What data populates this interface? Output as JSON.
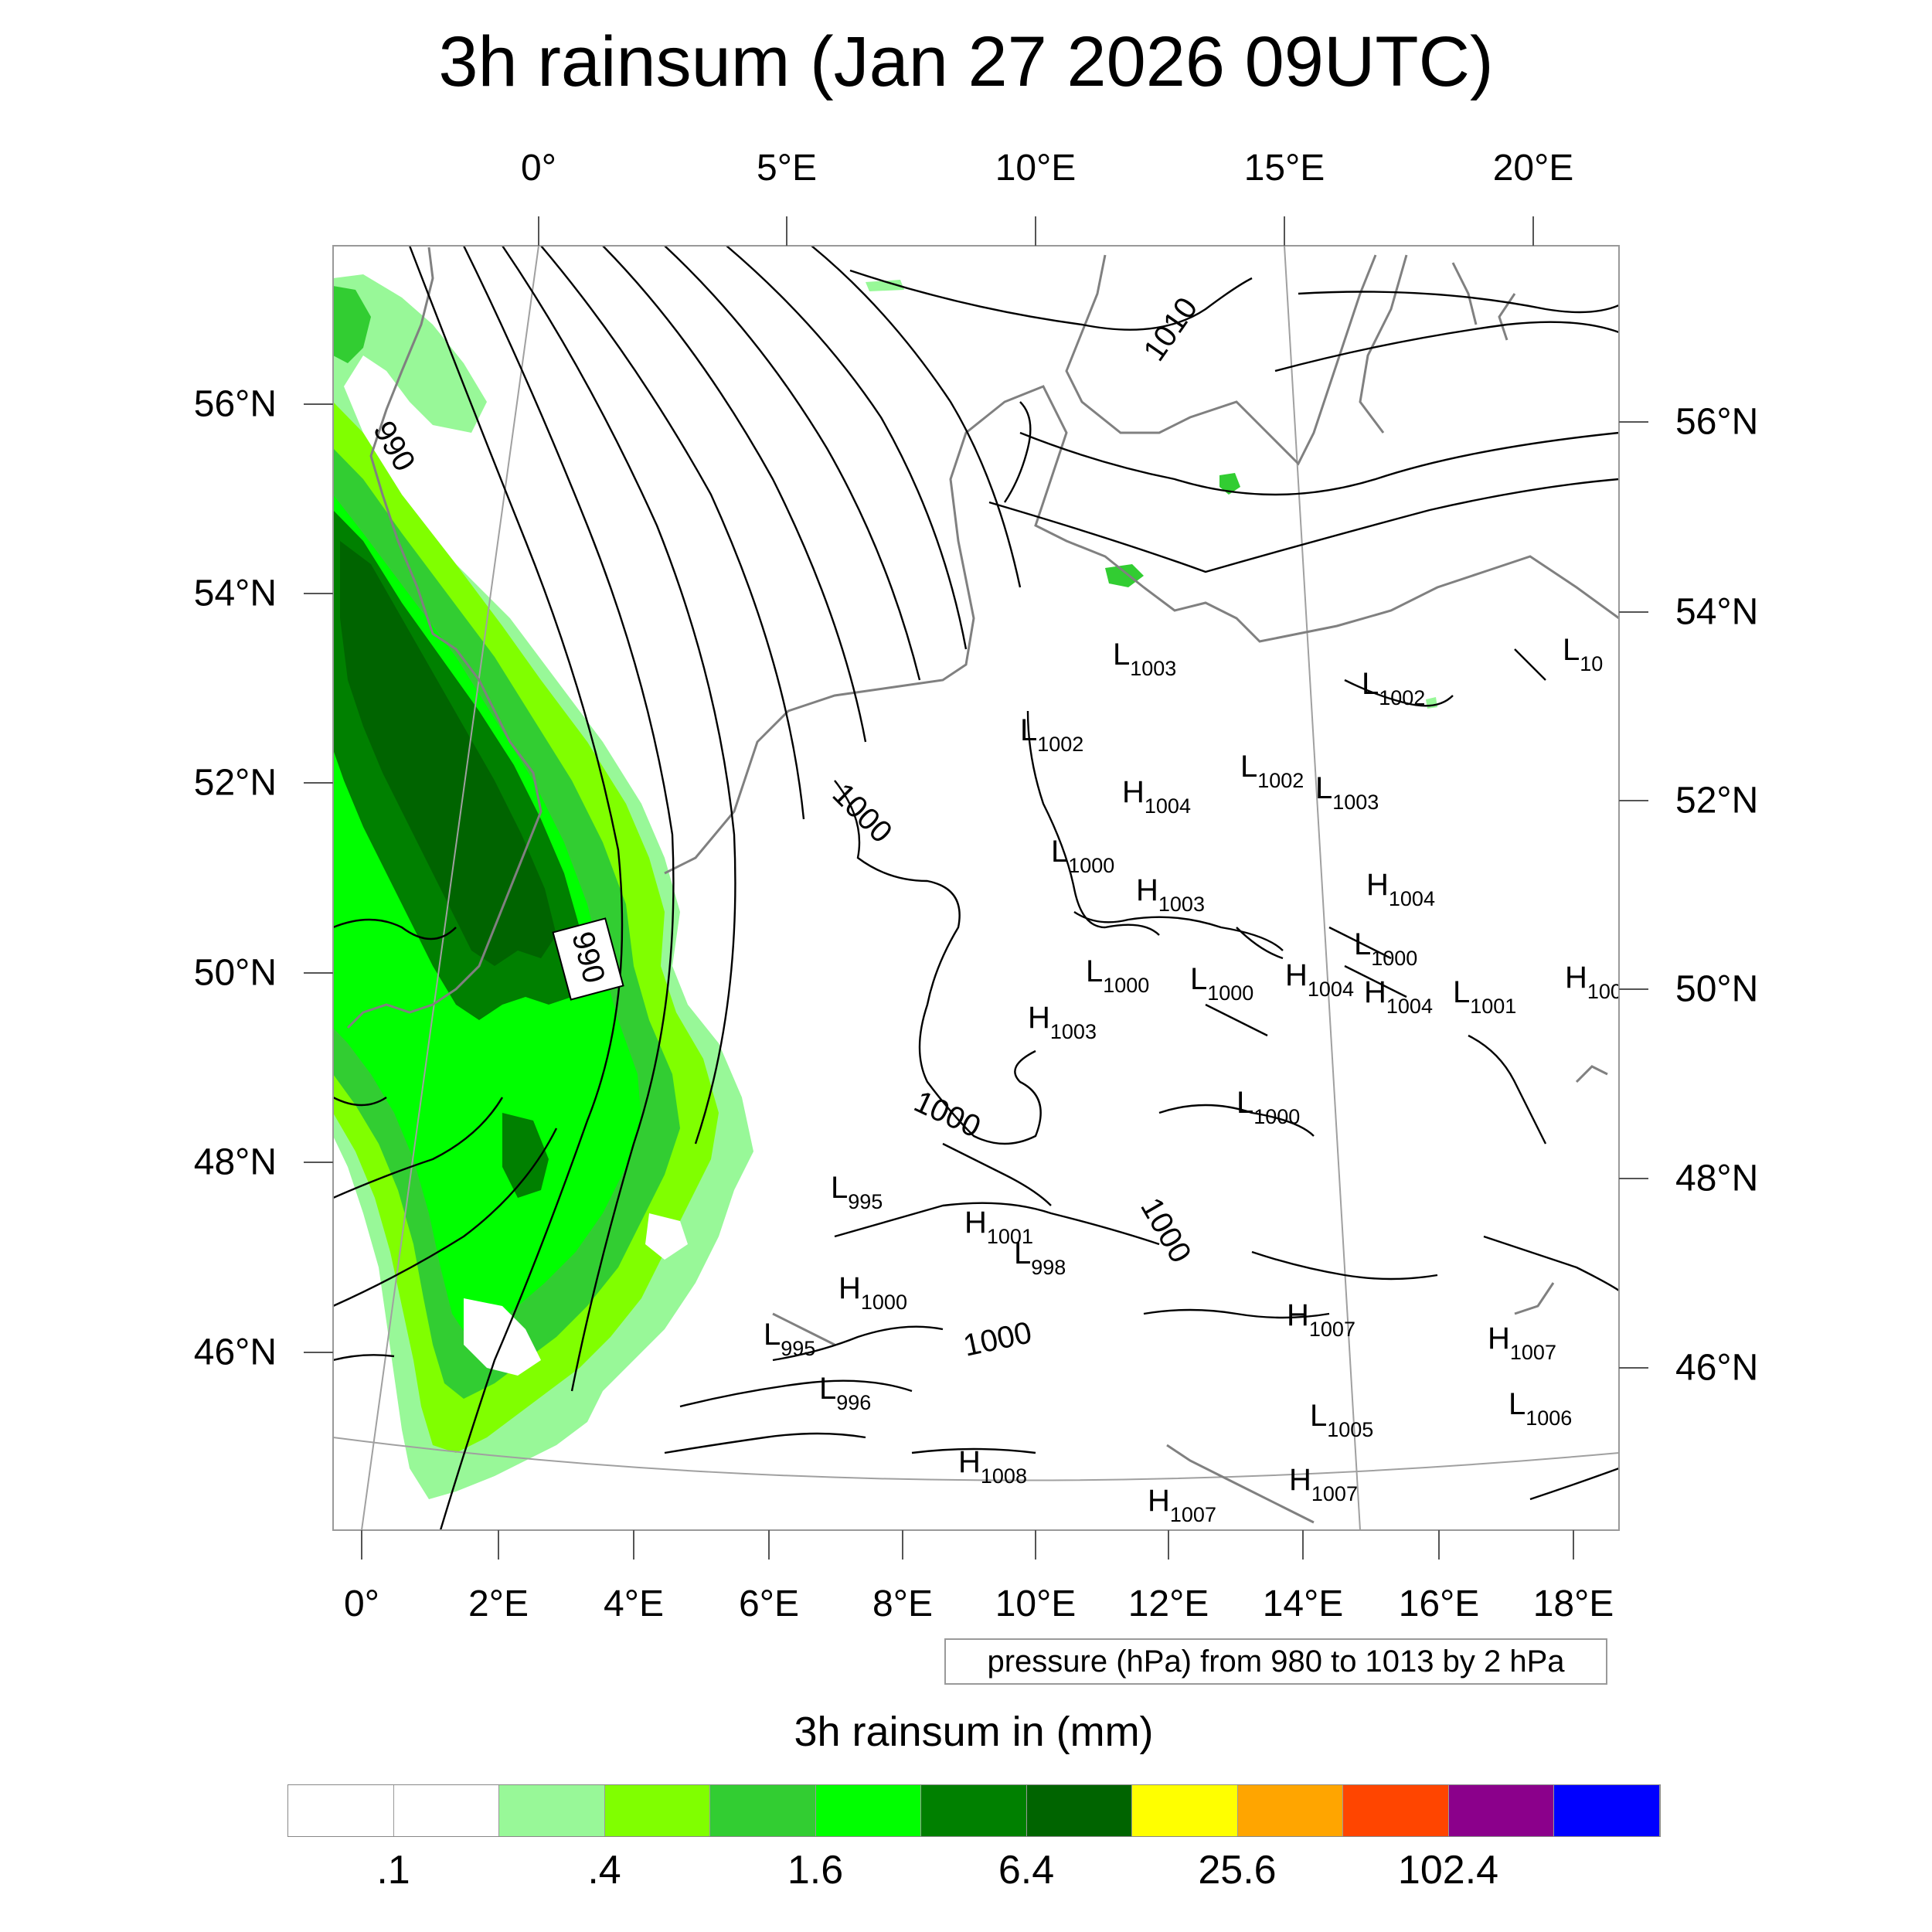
{
  "title": "3h rainsum (Jan 27 2026 09UTC)",
  "top_lon_ticks": [
    "0°",
    "5°E",
    "10°E",
    "15°E",
    "20°E"
  ],
  "bottom_lon_ticks": [
    "0°",
    "2°E",
    "4°E",
    "6°E",
    "8°E",
    "10°E",
    "12°E",
    "14°E",
    "16°E",
    "18°E"
  ],
  "left_lat_ticks": [
    "56°N",
    "54°N",
    "52°N",
    "50°N",
    "48°N",
    "46°N"
  ],
  "right_lat_ticks": [
    "56°N",
    "54°N",
    "52°N",
    "50°N",
    "48°N",
    "46°N"
  ],
  "contour_labels": [
    "1010",
    "990",
    "990",
    "1000",
    "1000",
    "1000",
    "1000"
  ],
  "pressure_centers": [
    {
      "letter": "L",
      "value": "1003"
    },
    {
      "letter": "L",
      "value": "1002"
    },
    {
      "letter": "L",
      "value": "1002"
    },
    {
      "letter": "L",
      "value": "1002"
    },
    {
      "letter": "L",
      "value": "1003"
    },
    {
      "letter": "H",
      "value": "1004"
    },
    {
      "letter": "L",
      "value": "1000"
    },
    {
      "letter": "H",
      "value": "1003"
    },
    {
      "letter": "H",
      "value": "1004"
    },
    {
      "letter": "L",
      "value": "1000"
    },
    {
      "letter": "L",
      "value": "1000"
    },
    {
      "letter": "L",
      "value": "1000"
    },
    {
      "letter": "H",
      "value": "1004"
    },
    {
      "letter": "H",
      "value": "1004"
    },
    {
      "letter": "L",
      "value": "1001"
    },
    {
      "letter": "H",
      "value": "100"
    },
    {
      "letter": "H",
      "value": "1003"
    },
    {
      "letter": "L",
      "value": "1000"
    },
    {
      "letter": "L",
      "value": "995"
    },
    {
      "letter": "H",
      "value": "1001"
    },
    {
      "letter": "L",
      "value": "998"
    },
    {
      "letter": "H",
      "value": "1000"
    },
    {
      "letter": "L",
      "value": "995"
    },
    {
      "letter": "L",
      "value": "996"
    },
    {
      "letter": "H",
      "value": "1007"
    },
    {
      "letter": "H",
      "value": "1007"
    },
    {
      "letter": "L",
      "value": "1006"
    },
    {
      "letter": "L",
      "value": "1005"
    },
    {
      "letter": "H",
      "value": "1008"
    },
    {
      "letter": "H",
      "value": "1007"
    },
    {
      "letter": "H",
      "value": "1007"
    },
    {
      "letter": "L",
      "value": "10"
    }
  ],
  "pressure_note": "pressure (hPa) from 980 to 1013 by 2 hPa",
  "colorbar": {
    "title": "3h rainsum in (mm)",
    "colors": [
      "#ffffff",
      "#ffffff",
      "#98f898",
      "#80ff00",
      "#32cd32",
      "#00ff00",
      "#008000",
      "#006400",
      "#ffff00",
      "#ffa500",
      "#ff4500",
      "#8b008b",
      "#0000ff"
    ],
    "labels": [
      ".1",
      ".4",
      "1.6",
      "6.4",
      "25.6",
      "102.4"
    ]
  },
  "rain_colors": {
    "light": "#98f898",
    "lime": "#80ff00",
    "green": "#32cd32",
    "bright": "#00ff00",
    "dark": "#008000",
    "darkest": "#006400"
  },
  "line_colors": {
    "isobar": "#000000",
    "coast": "#808080",
    "frame": "#999999"
  }
}
